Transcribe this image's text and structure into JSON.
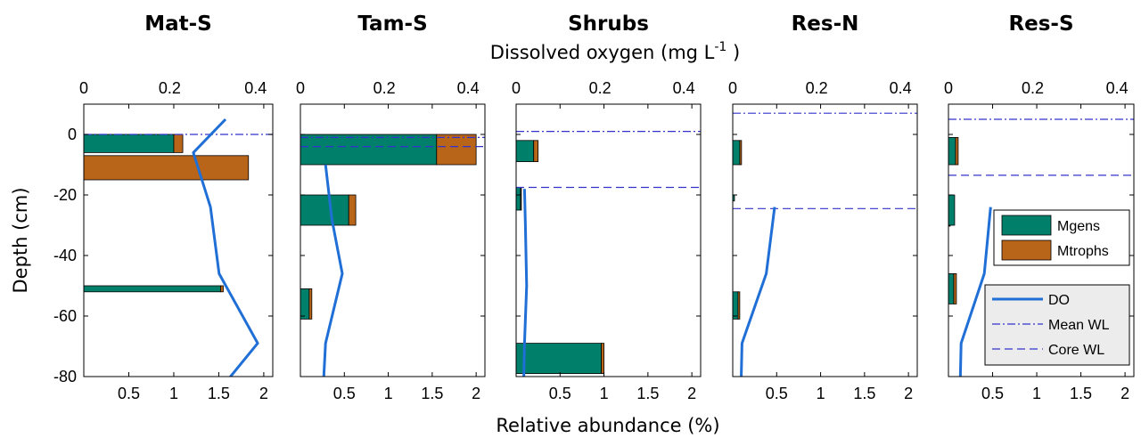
{
  "chart_data": {
    "type": "bar",
    "top_axis_label": "Dissolved oxygen (mg L",
    "top_axis_label_sup": "-1",
    "top_axis_label_end": " )",
    "bottom_axis_label": "Relative abundance (%)",
    "left_axis_label": "Depth (cm)",
    "ylim": [
      -80,
      10
    ],
    "yticks": [
      0,
      -20,
      -40,
      -60,
      -80
    ],
    "xlim_abundance": [
      0,
      2.1
    ],
    "xticks_abundance": [
      0.5,
      1,
      1.5,
      2
    ],
    "xlim_do": [
      0,
      0.44
    ],
    "xticks_do": [
      0,
      0.2,
      0.4
    ],
    "colors": {
      "Mgens": "#00806b",
      "Mtrophs": "#b8651a",
      "DO": "#1f6fd6",
      "mean_wl": "#3333cc",
      "core_wl": "#3333cc"
    },
    "legend": {
      "Mgens": "Mgens",
      "Mtrophs": "Mtrophs",
      "DO": "DO",
      "mean_wl": "Mean WL",
      "core_wl": "Core WL"
    },
    "panels": [
      {
        "title": "Mat-S",
        "bars": [
          {
            "top": 0,
            "bottom": -6,
            "Mgens": 1.0,
            "Mtrophs": 0.1
          },
          {
            "top": -7,
            "bottom": -15,
            "Mgens": 0,
            "Mtrophs": 1.83
          },
          {
            "top": -50,
            "bottom": -52,
            "Mgens": 1.52,
            "Mtrophs": 0.03
          }
        ],
        "do": [
          {
            "x": 0.33,
            "y": 5
          },
          {
            "x": 0.255,
            "y": -6
          },
          {
            "x": 0.295,
            "y": -24
          },
          {
            "x": 0.315,
            "y": -46
          },
          {
            "x": 0.405,
            "y": -69
          },
          {
            "x": 0.33,
            "y": -82
          }
        ],
        "mean_wl": 0,
        "core_wl": null
      },
      {
        "title": "Tam-S",
        "bars": [
          {
            "top": 0,
            "bottom": -10,
            "Mgens": 1.55,
            "Mtrophs": 0.45
          },
          {
            "top": -20,
            "bottom": -30,
            "Mgens": 0.55,
            "Mtrophs": 0.08
          },
          {
            "top": -51,
            "bottom": -61,
            "Mgens": 0.1,
            "Mtrophs": 0.03
          }
        ],
        "do": [
          {
            "x": 0.06,
            "y": -10
          },
          {
            "x": 0.075,
            "y": -28
          },
          {
            "x": 0.1,
            "y": -46
          },
          {
            "x": 0.06,
            "y": -69
          },
          {
            "x": 0.055,
            "y": -82
          }
        ],
        "mean_wl": -1,
        "core_wl": -4
      },
      {
        "title": "Shrubs",
        "bars": [
          {
            "top": -2,
            "bottom": -9,
            "Mgens": 0.2,
            "Mtrophs": 0.05
          },
          {
            "top": -17.5,
            "bottom": -25,
            "Mgens": 0.05,
            "Mtrophs": 0.01
          },
          {
            "top": -69,
            "bottom": -79,
            "Mgens": 0.97,
            "Mtrophs": 0.03
          }
        ],
        "do": [
          {
            "x": 0.02,
            "y": -18
          },
          {
            "x": 0.022,
            "y": -30
          },
          {
            "x": 0.025,
            "y": -50
          },
          {
            "x": 0.02,
            "y": -69
          },
          {
            "x": 0.018,
            "y": -82
          }
        ],
        "mean_wl": 1,
        "core_wl": -17.5
      },
      {
        "title": "Res-N",
        "bars": [
          {
            "top": -2,
            "bottom": -10,
            "Mgens": 0.08,
            "Mtrophs": 0.02
          },
          {
            "top": -20,
            "bottom": -22,
            "Mgens": 0.02,
            "Mtrophs": 0.0
          },
          {
            "top": -52,
            "bottom": -61,
            "Mgens": 0.06,
            "Mtrophs": 0.02
          }
        ],
        "do": [
          {
            "x": 0.1,
            "y": -24
          },
          {
            "x": 0.08,
            "y": -46
          },
          {
            "x": 0.022,
            "y": -69
          },
          {
            "x": 0.02,
            "y": -82
          }
        ],
        "mean_wl": 7,
        "core_wl": -24.5
      },
      {
        "title": "Res-S",
        "bars": [
          {
            "top": -1,
            "bottom": -10,
            "Mgens": 0.08,
            "Mtrophs": 0.03
          },
          {
            "top": -30,
            "bottom": -30.3,
            "Mgens": 0.02,
            "Mtrophs": 0
          },
          {
            "top": -20,
            "bottom": -30,
            "Mgens": 0.07,
            "Mtrophs": 0
          },
          {
            "top": -46,
            "bottom": -56,
            "Mgens": 0.06,
            "Mtrophs": 0.03
          }
        ],
        "do": [
          {
            "x": 0.1,
            "y": -24
          },
          {
            "x": 0.085,
            "y": -46
          },
          {
            "x": 0.03,
            "y": -69
          },
          {
            "x": 0.028,
            "y": -82
          }
        ],
        "mean_wl": 5,
        "core_wl": -13.5
      }
    ]
  }
}
